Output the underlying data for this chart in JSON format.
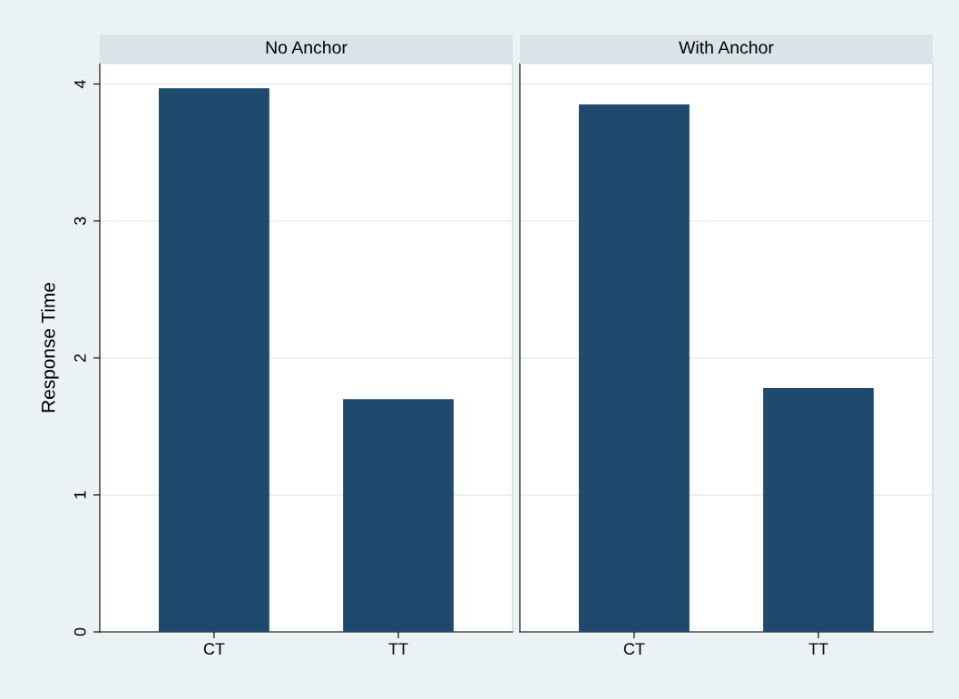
{
  "chart_data": [
    {
      "type": "bar",
      "title": "No Anchor",
      "ylabel": "Response Time",
      "categories": [
        "CT",
        "TT"
      ],
      "series": [
        {
          "color": "#1f4a6e",
          "values": [
            3.97,
            1.7
          ]
        }
      ],
      "ylim": [
        0,
        4.15
      ],
      "yticks": [
        0,
        1,
        2,
        3,
        4
      ],
      "grid": "y"
    },
    {
      "type": "bar",
      "title": "With Anchor",
      "categories": [
        "CT",
        "TT"
      ],
      "series": [
        {
          "color": "#1f4a6e",
          "values": [
            3.85,
            1.78
          ]
        }
      ],
      "ylim": [
        0,
        4.15
      ],
      "yticks": [
        0,
        1,
        2,
        3,
        4
      ],
      "grid": "y",
      "tick_labels": "x"
    }
  ]
}
